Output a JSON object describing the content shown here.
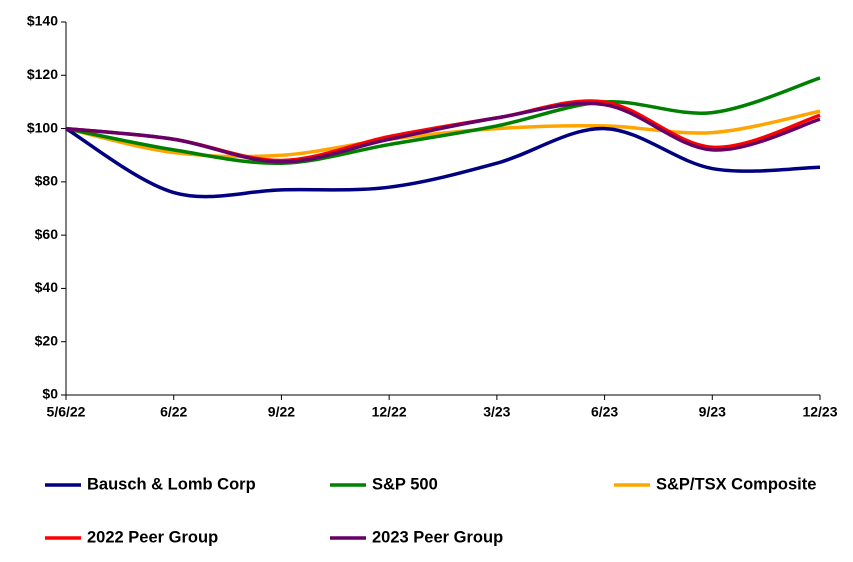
{
  "chart_data": {
    "type": "line",
    "categories": [
      "5/6/22",
      "6/22",
      "9/22",
      "12/22",
      "3/23",
      "6/23",
      "9/23",
      "12/23"
    ],
    "series": [
      {
        "name": "Bausch & Lomb Corp",
        "color": "#000080",
        "values": [
          100,
          76,
          77,
          78,
          87,
          100,
          85,
          85.5
        ]
      },
      {
        "name": "S&P 500",
        "color": "#008000",
        "values": [
          100,
          92,
          87,
          94,
          101,
          110,
          106,
          119
        ]
      },
      {
        "name": "S&P/TSX Composite",
        "color": "#FFA500",
        "values": [
          100,
          91,
          90,
          96,
          100,
          101,
          98.5,
          106.5
        ]
      },
      {
        "name": "2022 Peer Group",
        "color": "#FF0000",
        "values": [
          100,
          96,
          88,
          97,
          104,
          110,
          93,
          105
        ]
      },
      {
        "name": "2023 Peer Group",
        "color": "#660066",
        "values": [
          100,
          96,
          87.5,
          96,
          104,
          109,
          92,
          103.5
        ]
      }
    ],
    "ylim": [
      0,
      140
    ],
    "yticks": [
      {
        "value": 0,
        "label": "$0"
      },
      {
        "value": 20,
        "label": "$20"
      },
      {
        "value": 40,
        "label": "$40"
      },
      {
        "value": 60,
        "label": "$60"
      },
      {
        "value": 80,
        "label": "$80"
      },
      {
        "value": 100,
        "label": "$100"
      },
      {
        "value": 120,
        "label": "$120"
      },
      {
        "value": 140,
        "label": "$140"
      }
    ],
    "grid": false,
    "smooth": true,
    "legend": "bottom"
  }
}
